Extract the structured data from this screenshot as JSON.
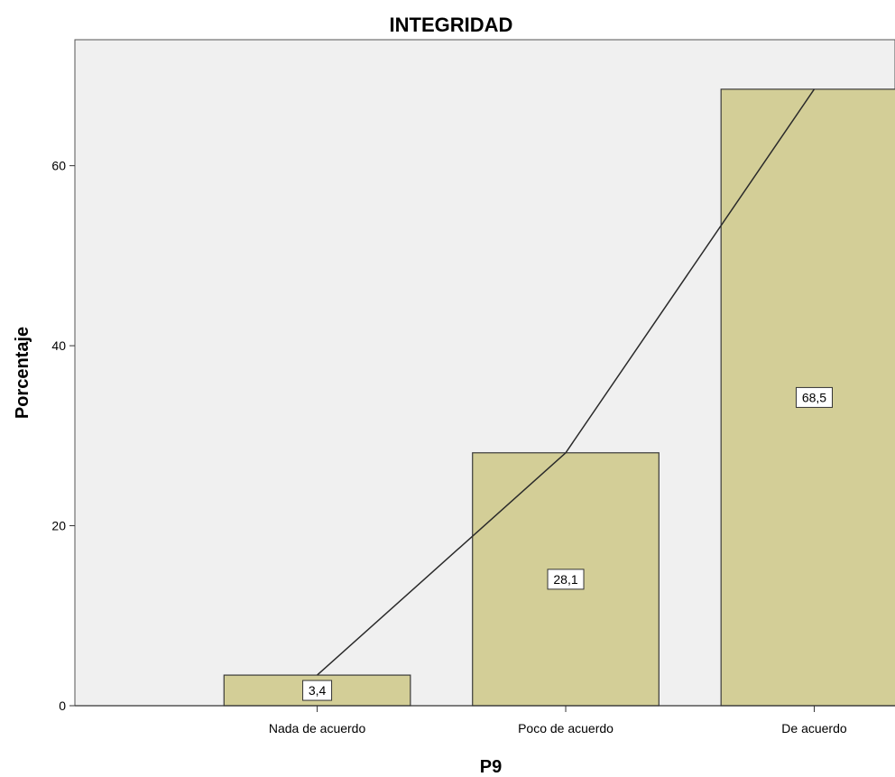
{
  "chart_data": {
    "type": "bar",
    "title": "INTEGRIDAD",
    "xlabel": "P9",
    "ylabel": "Porcentaje",
    "categories": [
      "Nada de acuerdo",
      "Poco de acuerdo",
      "De acuerdo"
    ],
    "values": [
      3.4,
      28.1,
      68.5
    ],
    "value_labels": [
      "3,4",
      "28,1",
      "68,5"
    ],
    "overlay_line": true,
    "ylim": [
      0,
      74
    ],
    "yticks": [
      0,
      20,
      40,
      60
    ],
    "ytick_labels": [
      "0",
      "20",
      "40",
      "60"
    ],
    "grid": false,
    "colors": {
      "plot_background": "#f0f0f0",
      "bar_fill": "#d3ce97",
      "bar_stroke": "#3a3a3a",
      "line": "#2a2a2a"
    }
  }
}
